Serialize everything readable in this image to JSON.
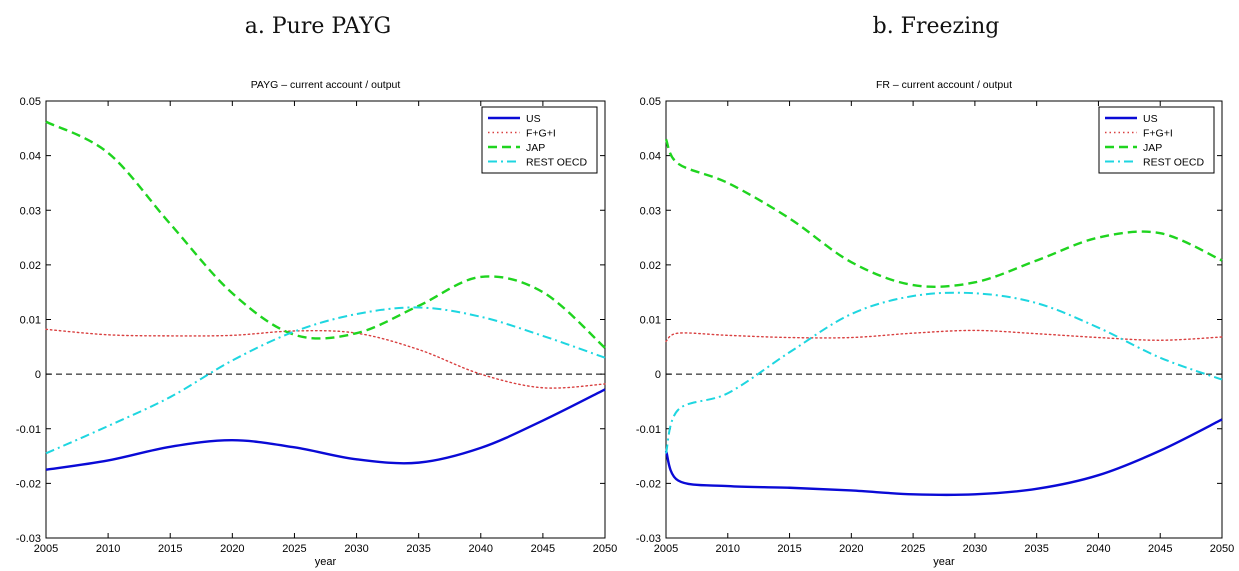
{
  "captions": {
    "a": "a. Pure PAYG",
    "b": "b. Freezing"
  },
  "colors": {
    "US": "#0a0ad6",
    "F+G+I": "#d94040",
    "JAP": "#1fd41f",
    "REST OECD": "#1ed6e0"
  },
  "chart_data": [
    {
      "type": "line",
      "title": "PAYG – current account / output",
      "xlabel": "year",
      "ylabel": "",
      "xlim": [
        2005,
        2050
      ],
      "ylim": [
        -0.03,
        0.05
      ],
      "xticks": [
        "2005",
        "2010",
        "2015",
        "2020",
        "2025",
        "2030",
        "2035",
        "2040",
        "2045",
        "2050"
      ],
      "yticks": [
        "-0.03",
        "-0.02",
        "-0.01",
        "0",
        "0.01",
        "0.02",
        "0.03",
        "0.04",
        "0.05"
      ],
      "grid": false,
      "legend": "top-right",
      "reference_line_y": 0,
      "x": [
        2005,
        2010,
        2015,
        2020,
        2025,
        2030,
        2035,
        2040,
        2045,
        2050
      ],
      "series": [
        {
          "name": "US",
          "style": "solid",
          "values": [
            -0.0175,
            -0.0158,
            -0.0133,
            -0.0121,
            -0.0134,
            -0.0156,
            -0.0162,
            -0.0135,
            -0.0085,
            -0.0028
          ]
        },
        {
          "name": "F+G+I",
          "style": "dotted",
          "values": [
            0.0082,
            0.0072,
            0.007,
            0.0071,
            0.0079,
            0.0075,
            0.0045,
            0.0,
            -0.0025,
            -0.0018
          ]
        },
        {
          "name": "JAP",
          "style": "dashed",
          "values": [
            0.0462,
            0.0405,
            0.0275,
            0.0148,
            0.0072,
            0.0075,
            0.0125,
            0.0178,
            0.015,
            0.0048
          ]
        },
        {
          "name": "REST OECD",
          "style": "dashdot",
          "values": [
            -0.0145,
            -0.0095,
            -0.0042,
            0.0025,
            0.0078,
            0.011,
            0.0122,
            0.0105,
            0.007,
            0.003
          ]
        }
      ]
    },
    {
      "type": "line",
      "title": "FR – current account / output",
      "xlabel": "year",
      "ylabel": "",
      "xlim": [
        2005,
        2050
      ],
      "ylim": [
        -0.03,
        0.05
      ],
      "xticks": [
        "2005",
        "2010",
        "2015",
        "2020",
        "2025",
        "2030",
        "2035",
        "2040",
        "2045",
        "2050"
      ],
      "yticks": [
        "-0.03",
        "-0.02",
        "-0.01",
        "0",
        "0.01",
        "0.02",
        "0.03",
        "0.04",
        "0.05"
      ],
      "grid": false,
      "legend": "top-right",
      "reference_line_y": 0,
      "x": [
        2005,
        2006,
        2010,
        2015,
        2020,
        2025,
        2030,
        2035,
        2040,
        2045,
        2050
      ],
      "series": [
        {
          "name": "US",
          "style": "solid",
          "values": [
            -0.014,
            -0.0195,
            -0.0205,
            -0.0208,
            -0.0213,
            -0.022,
            -0.022,
            -0.021,
            -0.0185,
            -0.014,
            -0.0083
          ]
        },
        {
          "name": "F+G+I",
          "style": "dotted",
          "values": [
            0.006,
            0.0075,
            0.0071,
            0.0067,
            0.0067,
            0.0075,
            0.008,
            0.0074,
            0.0067,
            0.0062,
            0.0068
          ]
        },
        {
          "name": "JAP",
          "style": "dashed",
          "values": [
            0.043,
            0.0385,
            0.035,
            0.0285,
            0.0205,
            0.0163,
            0.0168,
            0.0208,
            0.025,
            0.0258,
            0.0208
          ]
        },
        {
          "name": "REST OECD",
          "style": "dashdot",
          "values": [
            -0.0145,
            -0.0065,
            -0.0035,
            0.004,
            0.011,
            0.0143,
            0.0148,
            0.013,
            0.0085,
            0.003,
            -0.001
          ]
        }
      ]
    }
  ]
}
